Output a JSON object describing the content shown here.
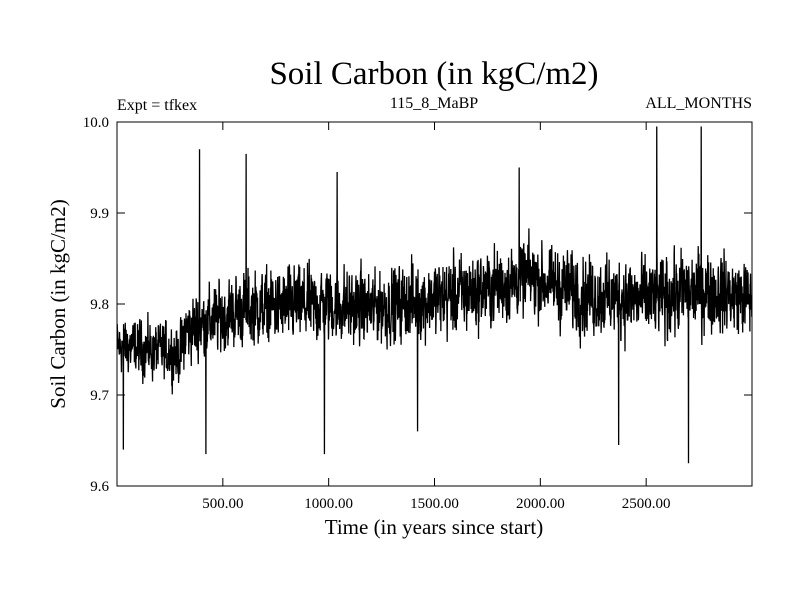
{
  "chart_data": {
    "type": "line",
    "title": "Soil Carbon (in kgC/m2)",
    "subtitle_left": "Expt = tfkex",
    "subtitle_center": "115_8_MaBP",
    "subtitle_right": "ALL_MONTHS",
    "xlabel": "Time (in years since start)",
    "ylabel": "Soil Carbon (in kgC/m2)",
    "xlim": [
      0,
      3000
    ],
    "ylim": [
      9.6,
      10.0
    ],
    "x_ticks": [
      500,
      1000,
      1500,
      2000,
      2500
    ],
    "x_tick_labels": [
      "500.00",
      "1000.00",
      "1500.00",
      "2000.00",
      "2500.00"
    ],
    "y_ticks": [
      9.6,
      9.7,
      9.8,
      9.9,
      10.0
    ],
    "y_tick_labels": [
      "9.6",
      "9.7",
      "9.8",
      "9.9",
      "10.0"
    ],
    "grid": false,
    "line_color": "#000000",
    "trend": [
      {
        "x": 0,
        "mean": 9.755,
        "amp": 0.055
      },
      {
        "x": 300,
        "mean": 9.745,
        "amp": 0.06
      },
      {
        "x": 320,
        "mean": 9.77,
        "amp": 0.07
      },
      {
        "x": 600,
        "mean": 9.795,
        "amp": 0.075
      },
      {
        "x": 1000,
        "mean": 9.8,
        "amp": 0.08
      },
      {
        "x": 1200,
        "mean": 9.795,
        "amp": 0.075
      },
      {
        "x": 1500,
        "mean": 9.805,
        "amp": 0.08
      },
      {
        "x": 1800,
        "mean": 9.82,
        "amp": 0.08
      },
      {
        "x": 1950,
        "mean": 9.83,
        "amp": 0.075
      },
      {
        "x": 2200,
        "mean": 9.81,
        "amp": 0.08
      },
      {
        "x": 2500,
        "mean": 9.805,
        "amp": 0.085
      },
      {
        "x": 2800,
        "mean": 9.815,
        "amp": 0.08
      },
      {
        "x": 3000,
        "mean": 9.805,
        "amp": 0.075
      }
    ],
    "extremes": [
      {
        "x": 390,
        "y": 9.97
      },
      {
        "x": 610,
        "y": 9.965
      },
      {
        "x": 1040,
        "y": 9.945
      },
      {
        "x": 1900,
        "y": 9.95
      },
      {
        "x": 2550,
        "y": 9.995
      },
      {
        "x": 2760,
        "y": 9.995
      },
      {
        "x": 2700,
        "y": 9.625
      },
      {
        "x": 420,
        "y": 9.635
      },
      {
        "x": 980,
        "y": 9.635
      },
      {
        "x": 1420,
        "y": 9.66
      },
      {
        "x": 2370,
        "y": 9.645
      },
      {
        "x": 30,
        "y": 9.64
      }
    ]
  }
}
